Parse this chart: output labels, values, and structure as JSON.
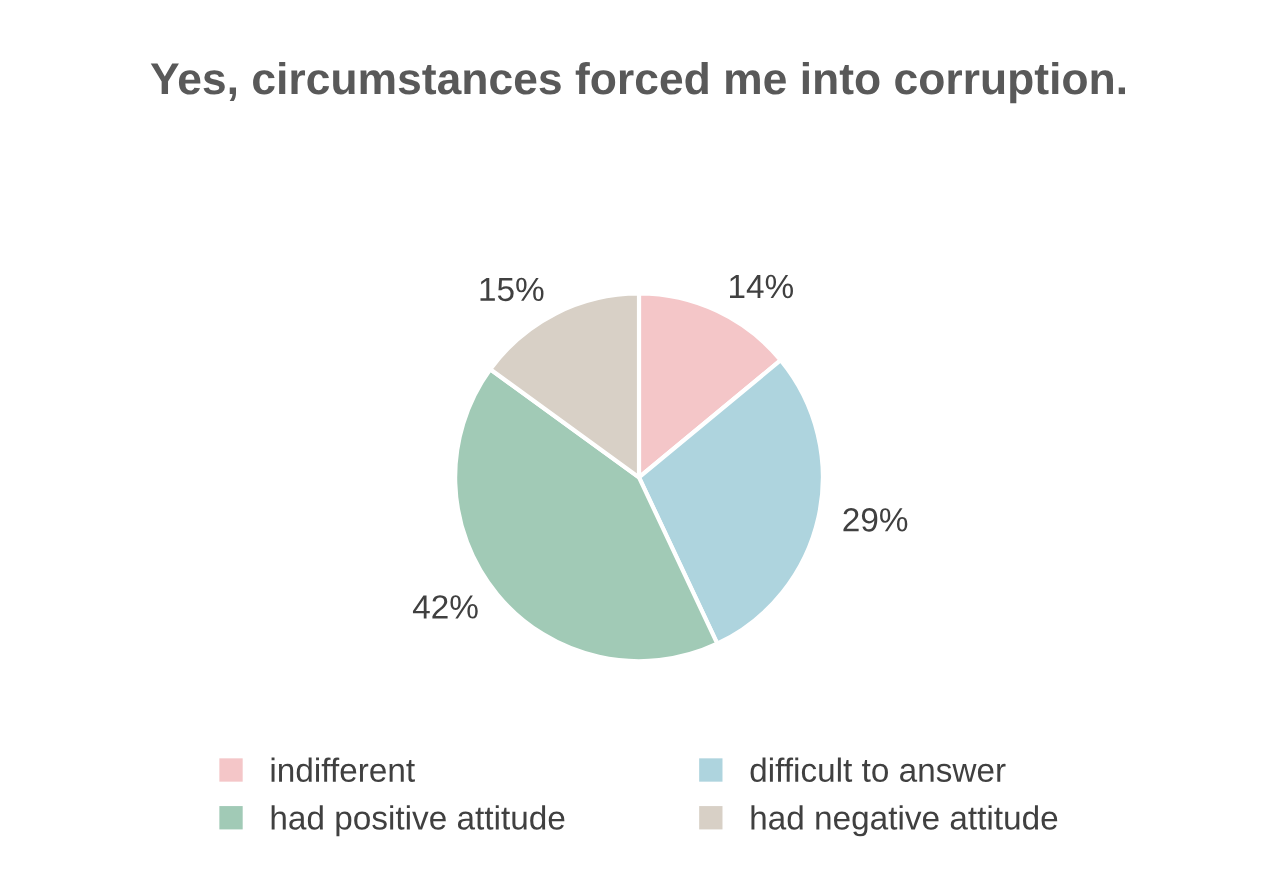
{
  "chart_data": {
    "type": "pie",
    "title": "Yes, circumstances forced me into corruption.",
    "categories": [
      "indifferent",
      "difficult to answer",
      "had positive attitude",
      "had negative attitude"
    ],
    "values": [
      14,
      29,
      42,
      15
    ],
    "value_labels": [
      "14%",
      "29%",
      "42%",
      "15%"
    ],
    "colors": [
      "#f4c6c8",
      "#aed4de",
      "#a1cab6",
      "#d8d0c6"
    ],
    "legend": "bottom"
  }
}
